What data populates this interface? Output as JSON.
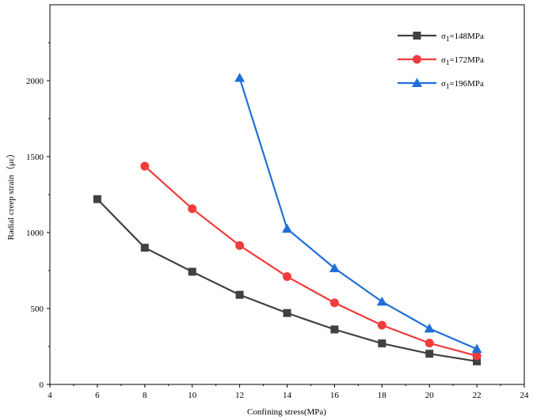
{
  "chart_data": {
    "type": "line",
    "title": "",
    "xlabel": "Confining stress(MPa)",
    "ylabel": "Radial creep strain（με）",
    "xlim": [
      4,
      24
    ],
    "ylim": [
      0,
      2500
    ],
    "xticks": [
      4,
      6,
      8,
      10,
      12,
      14,
      16,
      18,
      20,
      22,
      24
    ],
    "yticks": [
      0,
      500,
      1000,
      1500,
      2000
    ],
    "grid": false,
    "legend_position": "top-right",
    "series": [
      {
        "name": "σ₁=148MPa",
        "name_base": "σ",
        "name_sub": "1",
        "name_rest": "=148MPa",
        "color": "#404040",
        "marker": "square",
        "x": [
          6,
          8,
          10,
          12,
          14,
          16,
          18,
          20,
          22
        ],
        "y": [
          1220,
          900,
          742,
          590,
          470,
          362,
          270,
          202,
          152
        ]
      },
      {
        "name": "σ₁=172MPa",
        "name_base": "σ",
        "name_sub": "1",
        "name_rest": "=172MPa",
        "color": "#f03c3c",
        "marker": "circle",
        "x": [
          8,
          10,
          12,
          14,
          16,
          18,
          20,
          22
        ],
        "y": [
          1437,
          1157,
          915,
          710,
          537,
          390,
          272,
          188
        ]
      },
      {
        "name": "σ₁=196MPa",
        "name_base": "σ",
        "name_sub": "1",
        "name_rest": "=196MPa",
        "color": "#1f6fd6",
        "marker": "triangle",
        "x": [
          12,
          14,
          16,
          18,
          20,
          22
        ],
        "y": [
          2018,
          1025,
          765,
          545,
          368,
          233
        ]
      }
    ]
  }
}
